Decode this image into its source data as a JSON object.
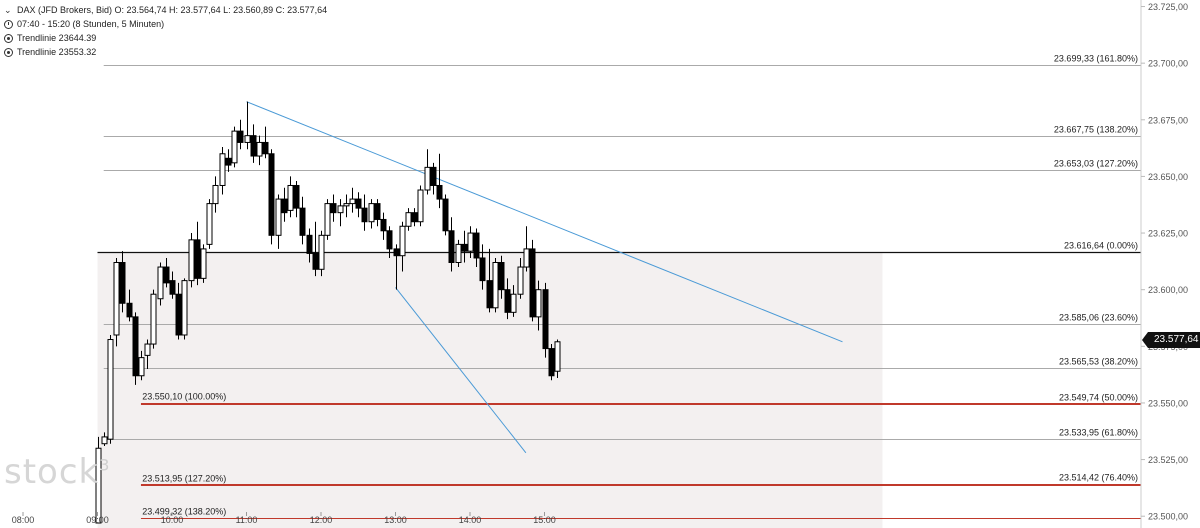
{
  "header": {
    "instrument_line": "DAX (JFD Brokers, Bid)  O: 23.564,74  H: 23.577,64  L: 23.560,89  C: 23.577,64",
    "period_line": "07:40 - 15:20  (8 Stunden, 5 Minuten)",
    "trendline1": "Trendlinie  23644.39",
    "trendline2": "Trendlinie  23553.32"
  },
  "watermark": {
    "text": "stock",
    "sup": "3"
  },
  "price_tag": "23.577,64",
  "chart_data": {
    "type": "candlestick",
    "title": "DAX (JFD Brokers, Bid)",
    "ylim": [
      23497,
      23727
    ],
    "y_ticks": [
      23500,
      23525,
      23550,
      23575,
      23600,
      23625,
      23650,
      23675,
      23700,
      23725
    ],
    "y_tick_labels": [
      "23.500,00",
      "23.525,00",
      "23.550,00",
      "23.575,00",
      "23.600,00",
      "23.625,00",
      "23.650,00",
      "23.675,00",
      "23.700,00",
      "23.725,00"
    ],
    "x_ticks": [
      {
        "time": "08:00",
        "minutes": 480
      },
      {
        "time": "09:00",
        "minutes": 540
      },
      {
        "time": "10:00",
        "minutes": 600
      },
      {
        "time": "11:00",
        "minutes": 660
      },
      {
        "time": "12:00",
        "minutes": 720
      },
      {
        "time": "13:00",
        "minutes": 780
      },
      {
        "time": "14:00",
        "minutes": 840
      },
      {
        "time": "15:00",
        "minutes": 900
      }
    ],
    "last_price": 23577.64,
    "fib_right": [
      {
        "price": 23699.33,
        "label": "23.699,33 (161.80%)",
        "color": "#aaaaaa"
      },
      {
        "price": 23667.75,
        "label": "23.667,75 (138.20%)",
        "color": "#aaaaaa"
      },
      {
        "price": 23653.03,
        "label": "23.653,03 (127.20%)",
        "color": "#aaaaaa"
      },
      {
        "price": 23616.64,
        "label": "23.616,64 (0.00%)",
        "color": "#111111"
      },
      {
        "price": 23585.06,
        "label": "23.585,06 (23.60%)",
        "color": "#aaaaaa"
      },
      {
        "price": 23565.53,
        "label": "23.565,53 (38.20%)",
        "color": "#aaaaaa"
      },
      {
        "price": 23549.74,
        "label": "23.549,74 (50.00%)",
        "color": "#c0392b"
      },
      {
        "price": 23533.95,
        "label": "23.533,95 (61.80%)",
        "color": "#aaaaaa"
      },
      {
        "price": 23514.42,
        "label": "23.514,42 (76.40%)",
        "color": "#c0392b"
      }
    ],
    "fib_left": [
      {
        "price": 23550.1,
        "label": "23.550,10 (100.00%)",
        "color": "#c0392b"
      },
      {
        "price": 23513.95,
        "label": "23.513,95 (127.20%)",
        "color": "#c0392b"
      },
      {
        "price": 23499.32,
        "label": "23.499,32 (138.20%)",
        "color": "#c0392b"
      }
    ],
    "trendlines": [
      {
        "name": "Trendlinie 23644.39",
        "start": {
          "minutes": 660,
          "price": 23683
        },
        "end": {
          "minutes": 1140,
          "price": 23577
        },
        "color": "#4a9ad6"
      },
      {
        "name": "Trendlinie 23553.32",
        "start": {
          "minutes": 780,
          "price": 23601
        },
        "end": {
          "minutes": 885,
          "price": 23528
        },
        "color": "#4a9ad6"
      }
    ],
    "candles": [
      {
        "t": 540,
        "o": 23497,
        "h": 23535,
        "l": 23497,
        "c": 23530
      },
      {
        "t": 545,
        "o": 23532,
        "h": 23537,
        "l": 23531,
        "c": 23535
      },
      {
        "t": 550,
        "o": 23534,
        "h": 23580,
        "l": 23532,
        "c": 23578
      },
      {
        "t": 555,
        "o": 23580,
        "h": 23614,
        "l": 23575,
        "c": 23612
      },
      {
        "t": 560,
        "o": 23612,
        "h": 23617,
        "l": 23590,
        "c": 23594
      },
      {
        "t": 565,
        "o": 23594,
        "h": 23600,
        "l": 23586,
        "c": 23588
      },
      {
        "t": 570,
        "o": 23588,
        "h": 23590,
        "l": 23558,
        "c": 23562
      },
      {
        "t": 575,
        "o": 23562,
        "h": 23573,
        "l": 23560,
        "c": 23570
      },
      {
        "t": 580,
        "o": 23571,
        "h": 23578,
        "l": 23565,
        "c": 23576
      },
      {
        "t": 585,
        "o": 23576,
        "h": 23600,
        "l": 23574,
        "c": 23598
      },
      {
        "t": 590,
        "o": 23596,
        "h": 23612,
        "l": 23593,
        "c": 23610
      },
      {
        "t": 595,
        "o": 23610,
        "h": 23614,
        "l": 23601,
        "c": 23603
      },
      {
        "t": 600,
        "o": 23604,
        "h": 23608,
        "l": 23596,
        "c": 23598
      },
      {
        "t": 605,
        "o": 23598,
        "h": 23603,
        "l": 23578,
        "c": 23580
      },
      {
        "t": 610,
        "o": 23580,
        "h": 23605,
        "l": 23578,
        "c": 23604
      },
      {
        "t": 615,
        "o": 23604,
        "h": 23625,
        "l": 23601,
        "c": 23622
      },
      {
        "t": 620,
        "o": 23622,
        "h": 23630,
        "l": 23602,
        "c": 23605
      },
      {
        "t": 625,
        "o": 23605,
        "h": 23620,
        "l": 23603,
        "c": 23618
      },
      {
        "t": 630,
        "o": 23620,
        "h": 23640,
        "l": 23618,
        "c": 23638
      },
      {
        "t": 635,
        "o": 23638,
        "h": 23650,
        "l": 23634,
        "c": 23646
      },
      {
        "t": 640,
        "o": 23646,
        "h": 23663,
        "l": 23642,
        "c": 23660
      },
      {
        "t": 645,
        "o": 23658,
        "h": 23662,
        "l": 23652,
        "c": 23655
      },
      {
        "t": 650,
        "o": 23656,
        "h": 23672,
        "l": 23654,
        "c": 23670
      },
      {
        "t": 655,
        "o": 23670,
        "h": 23675,
        "l": 23662,
        "c": 23665
      },
      {
        "t": 660,
        "o": 23665,
        "h": 23683,
        "l": 23662,
        "c": 23668
      },
      {
        "t": 665,
        "o": 23668,
        "h": 23673,
        "l": 23656,
        "c": 23659
      },
      {
        "t": 670,
        "o": 23659,
        "h": 23668,
        "l": 23655,
        "c": 23665
      },
      {
        "t": 675,
        "o": 23665,
        "h": 23672,
        "l": 23658,
        "c": 23660
      },
      {
        "t": 680,
        "o": 23660,
        "h": 23662,
        "l": 23620,
        "c": 23624
      },
      {
        "t": 685,
        "o": 23624,
        "h": 23642,
        "l": 23618,
        "c": 23640
      },
      {
        "t": 690,
        "o": 23640,
        "h": 23645,
        "l": 23630,
        "c": 23634
      },
      {
        "t": 695,
        "o": 23635,
        "h": 23650,
        "l": 23632,
        "c": 23646
      },
      {
        "t": 700,
        "o": 23646,
        "h": 23648,
        "l": 23632,
        "c": 23636
      },
      {
        "t": 705,
        "o": 23636,
        "h": 23641,
        "l": 23620,
        "c": 23624
      },
      {
        "t": 710,
        "o": 23624,
        "h": 23627,
        "l": 23612,
        "c": 23616
      },
      {
        "t": 715,
        "o": 23616,
        "h": 23630,
        "l": 23606,
        "c": 23609
      },
      {
        "t": 720,
        "o": 23609,
        "h": 23626,
        "l": 23606,
        "c": 23624
      },
      {
        "t": 725,
        "o": 23624,
        "h": 23640,
        "l": 23622,
        "c": 23638
      },
      {
        "t": 730,
        "o": 23638,
        "h": 23642,
        "l": 23630,
        "c": 23634
      },
      {
        "t": 735,
        "o": 23634,
        "h": 23640,
        "l": 23628,
        "c": 23637
      },
      {
        "t": 740,
        "o": 23637,
        "h": 23642,
        "l": 23632,
        "c": 23638
      },
      {
        "t": 745,
        "o": 23638,
        "h": 23645,
        "l": 23634,
        "c": 23640
      },
      {
        "t": 750,
        "o": 23640,
        "h": 23643,
        "l": 23632,
        "c": 23636
      },
      {
        "t": 755,
        "o": 23636,
        "h": 23642,
        "l": 23626,
        "c": 23630
      },
      {
        "t": 760,
        "o": 23630,
        "h": 23640,
        "l": 23627,
        "c": 23638
      },
      {
        "t": 765,
        "o": 23638,
        "h": 23640,
        "l": 23628,
        "c": 23631
      },
      {
        "t": 770,
        "o": 23631,
        "h": 23634,
        "l": 23622,
        "c": 23626
      },
      {
        "t": 775,
        "o": 23626,
        "h": 23628,
        "l": 23614,
        "c": 23618
      },
      {
        "t": 780,
        "o": 23618,
        "h": 23620,
        "l": 23600,
        "c": 23615
      },
      {
        "t": 785,
        "o": 23615,
        "h": 23630,
        "l": 23608,
        "c": 23628
      },
      {
        "t": 790,
        "o": 23628,
        "h": 23636,
        "l": 23626,
        "c": 23634
      },
      {
        "t": 795,
        "o": 23634,
        "h": 23636,
        "l": 23628,
        "c": 23630
      },
      {
        "t": 800,
        "o": 23630,
        "h": 23646,
        "l": 23628,
        "c": 23644
      },
      {
        "t": 805,
        "o": 23644,
        "h": 23662,
        "l": 23642,
        "c": 23654
      },
      {
        "t": 810,
        "o": 23654,
        "h": 23656,
        "l": 23642,
        "c": 23646
      },
      {
        "t": 815,
        "o": 23646,
        "h": 23660,
        "l": 23636,
        "c": 23640
      },
      {
        "t": 820,
        "o": 23640,
        "h": 23642,
        "l": 23624,
        "c": 23626
      },
      {
        "t": 825,
        "o": 23626,
        "h": 23632,
        "l": 23608,
        "c": 23612
      },
      {
        "t": 830,
        "o": 23612,
        "h": 23622,
        "l": 23610,
        "c": 23620
      },
      {
        "t": 835,
        "o": 23620,
        "h": 23626,
        "l": 23612,
        "c": 23617
      },
      {
        "t": 840,
        "o": 23617,
        "h": 23628,
        "l": 23614,
        "c": 23625
      },
      {
        "t": 845,
        "o": 23625,
        "h": 23627,
        "l": 23610,
        "c": 23614
      },
      {
        "t": 850,
        "o": 23614,
        "h": 23620,
        "l": 23600,
        "c": 23604
      },
      {
        "t": 855,
        "o": 23604,
        "h": 23618,
        "l": 23590,
        "c": 23592
      },
      {
        "t": 860,
        "o": 23592,
        "h": 23614,
        "l": 23590,
        "c": 23612
      },
      {
        "t": 865,
        "o": 23612,
        "h": 23615,
        "l": 23596,
        "c": 23600
      },
      {
        "t": 870,
        "o": 23600,
        "h": 23605,
        "l": 23587,
        "c": 23590
      },
      {
        "t": 875,
        "o": 23590,
        "h": 23602,
        "l": 23588,
        "c": 23598
      },
      {
        "t": 880,
        "o": 23598,
        "h": 23614,
        "l": 23596,
        "c": 23610
      },
      {
        "t": 885,
        "o": 23610,
        "h": 23628,
        "l": 23608,
        "c": 23618
      },
      {
        "t": 890,
        "o": 23618,
        "h": 23622,
        "l": 23586,
        "c": 23588
      },
      {
        "t": 895,
        "o": 23588,
        "h": 23604,
        "l": 23582,
        "c": 23600
      },
      {
        "t": 900,
        "o": 23600,
        "h": 23603,
        "l": 23570,
        "c": 23574
      },
      {
        "t": 905,
        "o": 23574,
        "h": 23576,
        "l": 23560,
        "c": 23562
      },
      {
        "t": 910,
        "o": 23564,
        "h": 23578,
        "l": 23561,
        "c": 23577
      }
    ]
  }
}
